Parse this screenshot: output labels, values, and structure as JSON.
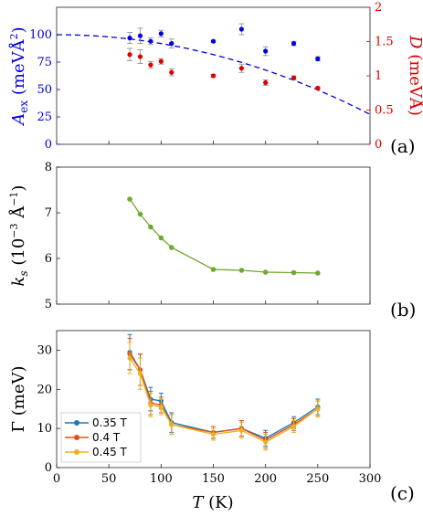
{
  "chart_data": [
    {
      "type": "scatter",
      "panel_label": "(a)",
      "x": [
        70,
        80,
        90,
        100,
        110,
        150,
        177,
        200,
        227,
        250
      ],
      "xlim": [
        0,
        300
      ],
      "ylabel_left": "A_ex (meVÅ²)",
      "ylabel_right": "D (meVÅ)",
      "ylim_left": [
        0,
        125
      ],
      "ylim_right": [
        0,
        2
      ],
      "yticks_left": [
        "0",
        "25",
        "50",
        "75",
        "100"
      ],
      "yticks_right": [
        "0",
        "0.5",
        "1",
        "1.5",
        "2"
      ],
      "series": [
        {
          "axis": "left",
          "color": "#0000dd",
          "values": [
            97,
            99,
            94,
            101,
            92,
            94,
            105,
            85,
            92,
            78
          ],
          "errors": [
            5,
            7,
            3,
            3,
            4,
            1,
            5,
            4,
            2,
            2
          ]
        },
        {
          "axis": "right",
          "color": "#dd0000",
          "values": [
            1.31,
            1.28,
            1.16,
            1.21,
            1.05,
            1.0,
            1.11,
            0.9,
            0.97,
            0.82
          ],
          "errors": [
            0.09,
            0.1,
            0.05,
            0.04,
            0.05,
            0.02,
            0.06,
            0.04,
            0.03,
            0.02
          ]
        },
        {
          "axis": "left",
          "color": "#0000dd",
          "style": "dashed",
          "fit": "100*(1-(T/352)^2)"
        }
      ]
    },
    {
      "type": "line",
      "panel_label": "(b)",
      "x": [
        70,
        80,
        90,
        100,
        110,
        150,
        177,
        200,
        227,
        250
      ],
      "xlim": [
        0,
        300
      ],
      "ylim": [
        5,
        8
      ],
      "yticks": [
        "5",
        "6",
        "7",
        "8"
      ],
      "ylabel": "k_s (10⁻³ Å⁻¹)",
      "series": [
        {
          "color": "#70a830",
          "values": [
            7.3,
            6.97,
            6.69,
            6.45,
            6.24,
            5.76,
            5.74,
            5.7,
            5.69,
            5.68
          ]
        }
      ]
    },
    {
      "type": "line",
      "panel_label": "(c)",
      "x": [
        70,
        80,
        90,
        100,
        110,
        150,
        177,
        200,
        227,
        250
      ],
      "xlim": [
        0,
        300
      ],
      "xticks": [
        "0",
        "50",
        "100",
        "150",
        "200",
        "250",
        "300"
      ],
      "xlabel": "T (K)",
      "ylim": [
        0,
        35
      ],
      "yticks": [
        "0",
        "10",
        "20",
        "30"
      ],
      "ylabel": "Γ (meV)",
      "series": [
        {
          "name": "0.35 T",
          "color": "#1f77b4",
          "values": [
            29.5,
            25,
            17.5,
            17,
            11.5,
            9,
            10,
            7.5,
            11.5,
            15.5
          ],
          "errors": [
            4.5,
            4,
            3,
            2,
            2.5,
            1.5,
            2,
            2,
            1.5,
            2
          ]
        },
        {
          "name": "0.4 T",
          "color": "#d95319",
          "values": [
            29,
            25,
            16.5,
            16,
            11,
            9,
            10,
            7,
            11,
            15
          ],
          "errors": [
            4,
            4,
            3,
            2,
            2.5,
            1.5,
            2,
            2,
            1.5,
            2
          ]
        },
        {
          "name": "0.45 T",
          "color": "#edb120",
          "values": [
            28,
            24,
            16,
            15.5,
            11,
            8.5,
            9.5,
            6.5,
            10.5,
            15
          ],
          "errors": [
            4,
            4,
            3,
            2,
            2.5,
            1.5,
            2,
            2,
            1.5,
            2
          ]
        }
      ]
    }
  ]
}
